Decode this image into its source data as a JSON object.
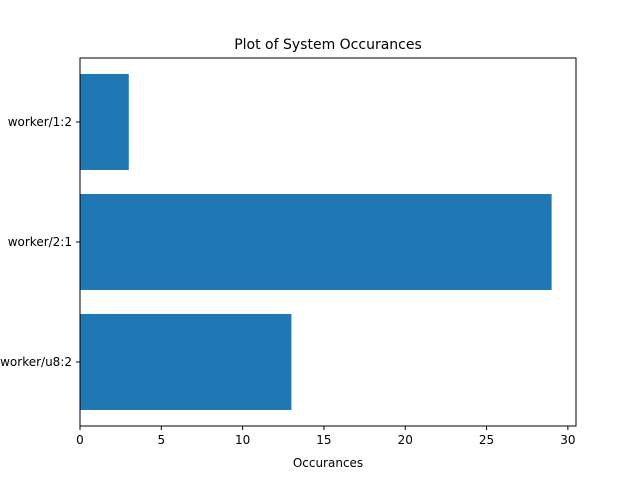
{
  "chart_data": {
    "type": "bar",
    "orientation": "horizontal",
    "title": "Plot of System Occurances",
    "xlabel": "Occurances",
    "ylabel": "",
    "categories": [
      "worker/1:2",
      "worker/2:1",
      "worker/u8:2"
    ],
    "values": [
      3,
      29,
      13
    ],
    "xlim": [
      0,
      30.5
    ],
    "xticks": [
      0,
      5,
      10,
      15,
      20,
      25,
      30
    ],
    "grid": false,
    "bar_color": "#1f77b4"
  }
}
